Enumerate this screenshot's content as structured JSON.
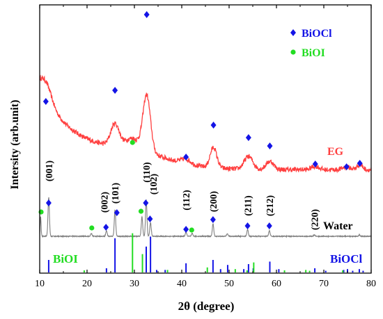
{
  "chart_data": {
    "type": "line",
    "xlabel": "2θ (degree)",
    "ylabel": "Intersity (arb.unit)",
    "xlim": [
      10,
      80
    ],
    "x_ticks": [
      "10",
      "20",
      "30",
      "40",
      "50",
      "60",
      "70",
      "80"
    ],
    "grid": false,
    "legend_position": "top-right",
    "legend": [
      {
        "label": "BiOCl",
        "marker": "diamond",
        "color": "#1414e6"
      },
      {
        "label": "BiOI",
        "marker": "circle",
        "color": "#22dd22"
      }
    ],
    "colors": {
      "eg": "#ff4040",
      "water": "#808080",
      "biocl": "#1414e6",
      "bioi": "#22dd22",
      "text": "#000000"
    },
    "series": [
      {
        "name": "EG",
        "color": "#ff4040",
        "baseline_y": 0.52,
        "broad_background": 0.52,
        "peaks": [
          {
            "x": 11.3,
            "height": 0.3,
            "width": 1.2
          },
          {
            "x": 25.9,
            "height": 0.38,
            "width": 0.9
          },
          {
            "x": 29.6,
            "height": 0.18,
            "width": 1.5
          },
          {
            "x": 32.6,
            "height": 0.96,
            "width": 0.8
          },
          {
            "x": 40.9,
            "height": 0.08,
            "width": 1.0
          },
          {
            "x": 46.7,
            "height": 0.35,
            "width": 0.7
          },
          {
            "x": 54.1,
            "height": 0.22,
            "width": 0.9
          },
          {
            "x": 58.6,
            "height": 0.14,
            "width": 0.8
          },
          {
            "x": 68.2,
            "height": 0.06,
            "width": 0.8
          },
          {
            "x": 74.8,
            "height": 0.05,
            "width": 0.8
          },
          {
            "x": 77.6,
            "height": 0.09,
            "width": 0.6
          }
        ]
      },
      {
        "name": "Water",
        "color": "#808080",
        "baseline_y": 0.0,
        "peaks": [
          {
            "x": 10.2,
            "height": 0.14,
            "width": 0.1
          },
          {
            "x": 11.9,
            "height": 0.28,
            "width": 0.15
          },
          {
            "x": 20.9,
            "height": 0.02,
            "width": 0.15
          },
          {
            "x": 24.1,
            "height": 0.04,
            "width": 0.15
          },
          {
            "x": 25.9,
            "height": 0.19,
            "width": 0.15
          },
          {
            "x": 31.6,
            "height": 0.14,
            "width": 0.15
          },
          {
            "x": 32.5,
            "height": 0.26,
            "width": 0.15
          },
          {
            "x": 33.4,
            "height": 0.1,
            "width": 0.15
          },
          {
            "x": 40.9,
            "height": 0.03,
            "width": 0.15
          },
          {
            "x": 42.2,
            "height": 0.02,
            "width": 0.15
          },
          {
            "x": 46.6,
            "height": 0.09,
            "width": 0.15
          },
          {
            "x": 49.6,
            "height": 0.02,
            "width": 0.15
          },
          {
            "x": 53.9,
            "height": 0.05,
            "width": 0.15
          },
          {
            "x": 58.5,
            "height": 0.04,
            "width": 0.15
          },
          {
            "x": 68.0,
            "height": 0.01,
            "width": 0.15
          },
          {
            "x": 77.5,
            "height": 0.01,
            "width": 0.15
          }
        ]
      }
    ],
    "eg_markers": [
      {
        "x": 11.3,
        "type": "BiOCl"
      },
      {
        "x": 25.9,
        "type": "BiOCl"
      },
      {
        "x": 29.6,
        "type": "BiOI"
      },
      {
        "x": 32.6,
        "type": "BiOCl"
      },
      {
        "x": 40.9,
        "type": "BiOCl"
      },
      {
        "x": 46.7,
        "type": "BiOCl"
      },
      {
        "x": 54.1,
        "type": "BiOCl"
      },
      {
        "x": 58.6,
        "type": "BiOCl"
      },
      {
        "x": 68.2,
        "type": "BiOCl"
      },
      {
        "x": 74.8,
        "type": "BiOCl"
      },
      {
        "x": 77.6,
        "type": "BiOCl"
      }
    ],
    "water_markers": [
      {
        "x": 10.3,
        "type": "BiOI"
      },
      {
        "x": 11.9,
        "type": "BiOCl"
      },
      {
        "x": 21.0,
        "type": "BiOI"
      },
      {
        "x": 24.0,
        "type": "BiOCl"
      },
      {
        "x": 26.3,
        "type": "BiOCl"
      },
      {
        "x": 31.4,
        "type": "BiOI"
      },
      {
        "x": 32.4,
        "type": "BiOCl"
      },
      {
        "x": 33.3,
        "type": "BiOCl"
      },
      {
        "x": 40.9,
        "type": "BiOCl"
      },
      {
        "x": 42.1,
        "type": "BiOI"
      },
      {
        "x": 46.6,
        "type": "BiOCl"
      },
      {
        "x": 53.9,
        "type": "BiOCl"
      },
      {
        "x": 58.5,
        "type": "BiOCl"
      }
    ],
    "miller_labels": [
      {
        "x": 11.9,
        "text": "(001)"
      },
      {
        "x": 23.6,
        "text": "(002)"
      },
      {
        "x": 25.9,
        "text": "(101)"
      },
      {
        "x": 32.5,
        "text": "(110)"
      },
      {
        "x": 34.0,
        "text": "(102)"
      },
      {
        "x": 40.9,
        "text": "(112)"
      },
      {
        "x": 46.6,
        "text": "(200)"
      },
      {
        "x": 53.9,
        "text": "(211)"
      },
      {
        "x": 58.5,
        "text": "(212)"
      },
      {
        "x": 68.0,
        "text": "(220)"
      }
    ],
    "reference_sticks": {
      "BiOCl": [
        {
          "x": 11.9,
          "h": 0.3
        },
        {
          "x": 24.1,
          "h": 0.1
        },
        {
          "x": 25.9,
          "h": 0.82
        },
        {
          "x": 32.5,
          "h": 0.62
        },
        {
          "x": 33.4,
          "h": 0.86
        },
        {
          "x": 34.7,
          "h": 0.06
        },
        {
          "x": 36.5,
          "h": 0.06
        },
        {
          "x": 40.9,
          "h": 0.22
        },
        {
          "x": 46.6,
          "h": 0.3
        },
        {
          "x": 48.2,
          "h": 0.08
        },
        {
          "x": 49.7,
          "h": 0.18
        },
        {
          "x": 53.1,
          "h": 0.08
        },
        {
          "x": 54.1,
          "h": 0.2
        },
        {
          "x": 55.1,
          "h": 0.1
        },
        {
          "x": 58.6,
          "h": 0.26
        },
        {
          "x": 60.5,
          "h": 0.08
        },
        {
          "x": 68.1,
          "h": 0.1
        },
        {
          "x": 70.4,
          "h": 0.04
        },
        {
          "x": 74.2,
          "h": 0.06
        },
        {
          "x": 75.0,
          "h": 0.08
        },
        {
          "x": 76.1,
          "h": 0.04
        },
        {
          "x": 77.5,
          "h": 0.08
        },
        {
          "x": 78.3,
          "h": 0.04
        }
      ],
      "BiOI": [
        {
          "x": 19.4,
          "h": 0.05
        },
        {
          "x": 29.6,
          "h": 0.94
        },
        {
          "x": 31.7,
          "h": 0.44
        },
        {
          "x": 37.0,
          "h": 0.06
        },
        {
          "x": 45.4,
          "h": 0.12
        },
        {
          "x": 51.3,
          "h": 0.08
        },
        {
          "x": 53.8,
          "h": 0.05
        },
        {
          "x": 55.2,
          "h": 0.24
        },
        {
          "x": 61.7,
          "h": 0.05
        },
        {
          "x": 66.2,
          "h": 0.06
        },
        {
          "x": 67.0,
          "h": 0.04
        },
        {
          "x": 74.0,
          "h": 0.05
        }
      ]
    },
    "curve_labels": {
      "eg": "EG",
      "water": "Water"
    },
    "ref_labels": {
      "bioi": "BiOI",
      "biocl": "BiOCl"
    }
  }
}
